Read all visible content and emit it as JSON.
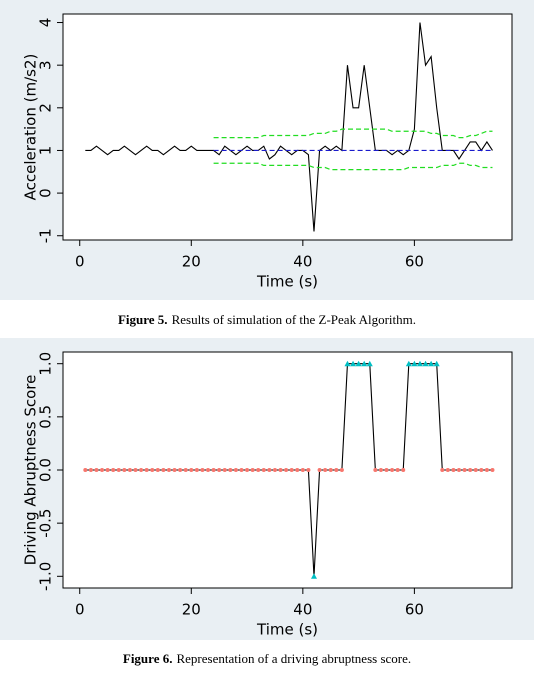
{
  "chart_data": [
    {
      "type": "line",
      "caption_label": "Figure 5.",
      "caption": "Results of simulation of the Z-Peak Algorithm.",
      "xlabel": "Time (s)",
      "ylabel": "Acceleration (m/s2)",
      "x": [
        1,
        2,
        3,
        4,
        5,
        6,
        7,
        8,
        9,
        10,
        11,
        12,
        13,
        14,
        15,
        16,
        17,
        18,
        19,
        20,
        21,
        22,
        23,
        24,
        25,
        26,
        27,
        28,
        29,
        30,
        31,
        32,
        33,
        34,
        35,
        36,
        37,
        38,
        39,
        40,
        41,
        42,
        43,
        44,
        45,
        46,
        47,
        48,
        49,
        50,
        51,
        52,
        53,
        54,
        55,
        56,
        57,
        58,
        59,
        60,
        61,
        62,
        63,
        64,
        65,
        66,
        67,
        68,
        69,
        70,
        71,
        72,
        73,
        74
      ],
      "xlim": [
        -3,
        77.5
      ],
      "ylim": [
        -1.1,
        4.2
      ],
      "xticks": [
        0,
        20,
        40,
        60
      ],
      "yticks": [
        -1,
        0,
        1,
        2,
        3,
        4
      ],
      "series": [
        {
          "color": "#000000",
          "dash": false,
          "values": [
            1,
            1,
            1.1,
            1,
            0.9,
            1,
            1,
            1.1,
            1,
            0.9,
            1,
            1.1,
            1,
            1,
            0.9,
            1,
            1.1,
            1,
            1,
            1.1,
            1,
            1,
            1,
            1,
            0.9,
            1.1,
            1,
            0.9,
            1,
            1.1,
            1,
            1,
            1.1,
            0.8,
            0.9,
            1.1,
            1,
            0.9,
            1,
            1,
            0.9,
            -0.9,
            1,
            1.1,
            1,
            1.1,
            1,
            3,
            2,
            2,
            3,
            2,
            1,
            1,
            1,
            0.9,
            1,
            0.9,
            1,
            1.5,
            4,
            3,
            3.2,
            2,
            1,
            1,
            1,
            0.8,
            1,
            1.2,
            1.2,
            1,
            1.2,
            1
          ]
        },
        {
          "color": "#1a1acc",
          "dash": true,
          "values": [
            null,
            null,
            null,
            null,
            null,
            null,
            null,
            null,
            null,
            null,
            null,
            null,
            null,
            null,
            null,
            null,
            null,
            null,
            null,
            null,
            null,
            null,
            null,
            1,
            1,
            1,
            1,
            1,
            1,
            1,
            1,
            1,
            1,
            1,
            1,
            1,
            1,
            1,
            1,
            1,
            1,
            1,
            1,
            1,
            1,
            1,
            1,
            1,
            1,
            1,
            1,
            1,
            1,
            1,
            1,
            1,
            1,
            1,
            1,
            1,
            1,
            1,
            1,
            1,
            1,
            1,
            1,
            1,
            1,
            1,
            1,
            1,
            1,
            1
          ]
        },
        {
          "color": "#22dd22",
          "dash": true,
          "values": [
            null,
            null,
            null,
            null,
            null,
            null,
            null,
            null,
            null,
            null,
            null,
            null,
            null,
            null,
            null,
            null,
            null,
            null,
            null,
            null,
            null,
            null,
            null,
            1.3,
            1.3,
            1.3,
            1.3,
            1.3,
            1.3,
            1.3,
            1.3,
            1.3,
            1.35,
            1.35,
            1.35,
            1.35,
            1.35,
            1.35,
            1.35,
            1.35,
            1.35,
            1.4,
            1.4,
            1.4,
            1.45,
            1.45,
            1.5,
            1.5,
            1.5,
            1.5,
            1.5,
            1.5,
            1.5,
            1.5,
            1.5,
            1.45,
            1.45,
            1.45,
            1.45,
            1.45,
            1.45,
            1.45,
            1.4,
            1.4,
            1.35,
            1.35,
            1.35,
            1.3,
            1.3,
            1.35,
            1.35,
            1.4,
            1.45,
            1.45
          ]
        },
        {
          "color": "#22dd22",
          "dash": true,
          "values": [
            null,
            null,
            null,
            null,
            null,
            null,
            null,
            null,
            null,
            null,
            null,
            null,
            null,
            null,
            null,
            null,
            null,
            null,
            null,
            null,
            null,
            null,
            null,
            0.7,
            0.7,
            0.7,
            0.7,
            0.7,
            0.7,
            0.7,
            0.7,
            0.7,
            0.65,
            0.65,
            0.65,
            0.65,
            0.65,
            0.65,
            0.65,
            0.65,
            0.65,
            0.6,
            0.6,
            0.6,
            0.55,
            0.55,
            0.55,
            0.55,
            0.55,
            0.55,
            0.55,
            0.55,
            0.55,
            0.55,
            0.55,
            0.55,
            0.55,
            0.55,
            0.6,
            0.6,
            0.6,
            0.6,
            0.6,
            0.6,
            0.65,
            0.65,
            0.65,
            0.7,
            0.7,
            0.65,
            0.65,
            0.6,
            0.6,
            0.6
          ]
        }
      ]
    },
    {
      "type": "line",
      "caption_label": "Figure 6.",
      "caption": "Representation of a driving abruptness score.",
      "xlabel": "Time (s)",
      "ylabel": "Driving Abruptness Score",
      "x": [
        1,
        2,
        3,
        4,
        5,
        6,
        7,
        8,
        9,
        10,
        11,
        12,
        13,
        14,
        15,
        16,
        17,
        18,
        19,
        20,
        21,
        22,
        23,
        24,
        25,
        26,
        27,
        28,
        29,
        30,
        31,
        32,
        33,
        34,
        35,
        36,
        37,
        38,
        39,
        40,
        41,
        42,
        43,
        44,
        45,
        46,
        47,
        48,
        49,
        50,
        51,
        52,
        53,
        54,
        55,
        56,
        57,
        58,
        59,
        60,
        61,
        62,
        63,
        64,
        65,
        66,
        67,
        68,
        69,
        70,
        71,
        72,
        73,
        74
      ],
      "xlim": [
        -3,
        77.5
      ],
      "ylim": [
        -1.11,
        1.11
      ],
      "xticks": [
        0,
        20,
        40,
        60
      ],
      "yticks": [
        {
          "value": -1,
          "label": "-1.0"
        },
        -0.5,
        {
          "value": 0,
          "label": "0.0"
        },
        0.5,
        {
          "value": 1,
          "label": "1.0"
        }
      ],
      "marker_color": "#f8766d",
      "highlight_color": "#00bfc4",
      "series": [
        {
          "color": "#000000",
          "dash": false,
          "markers": true,
          "values": [
            0,
            0,
            0,
            0,
            0,
            0,
            0,
            0,
            0,
            0,
            0,
            0,
            0,
            0,
            0,
            0,
            0,
            0,
            0,
            0,
            0,
            0,
            0,
            0,
            0,
            0,
            0,
            0,
            0,
            0,
            0,
            0,
            0,
            0,
            0,
            0,
            0,
            0,
            0,
            0,
            0,
            -1,
            0,
            0,
            0,
            0,
            0,
            1,
            1,
            1,
            1,
            1,
            0,
            0,
            0,
            0,
            0,
            0,
            1,
            1,
            1,
            1,
            1,
            1,
            0,
            0,
            0,
            0,
            0,
            0,
            0,
            0,
            0,
            0
          ]
        }
      ]
    }
  ]
}
